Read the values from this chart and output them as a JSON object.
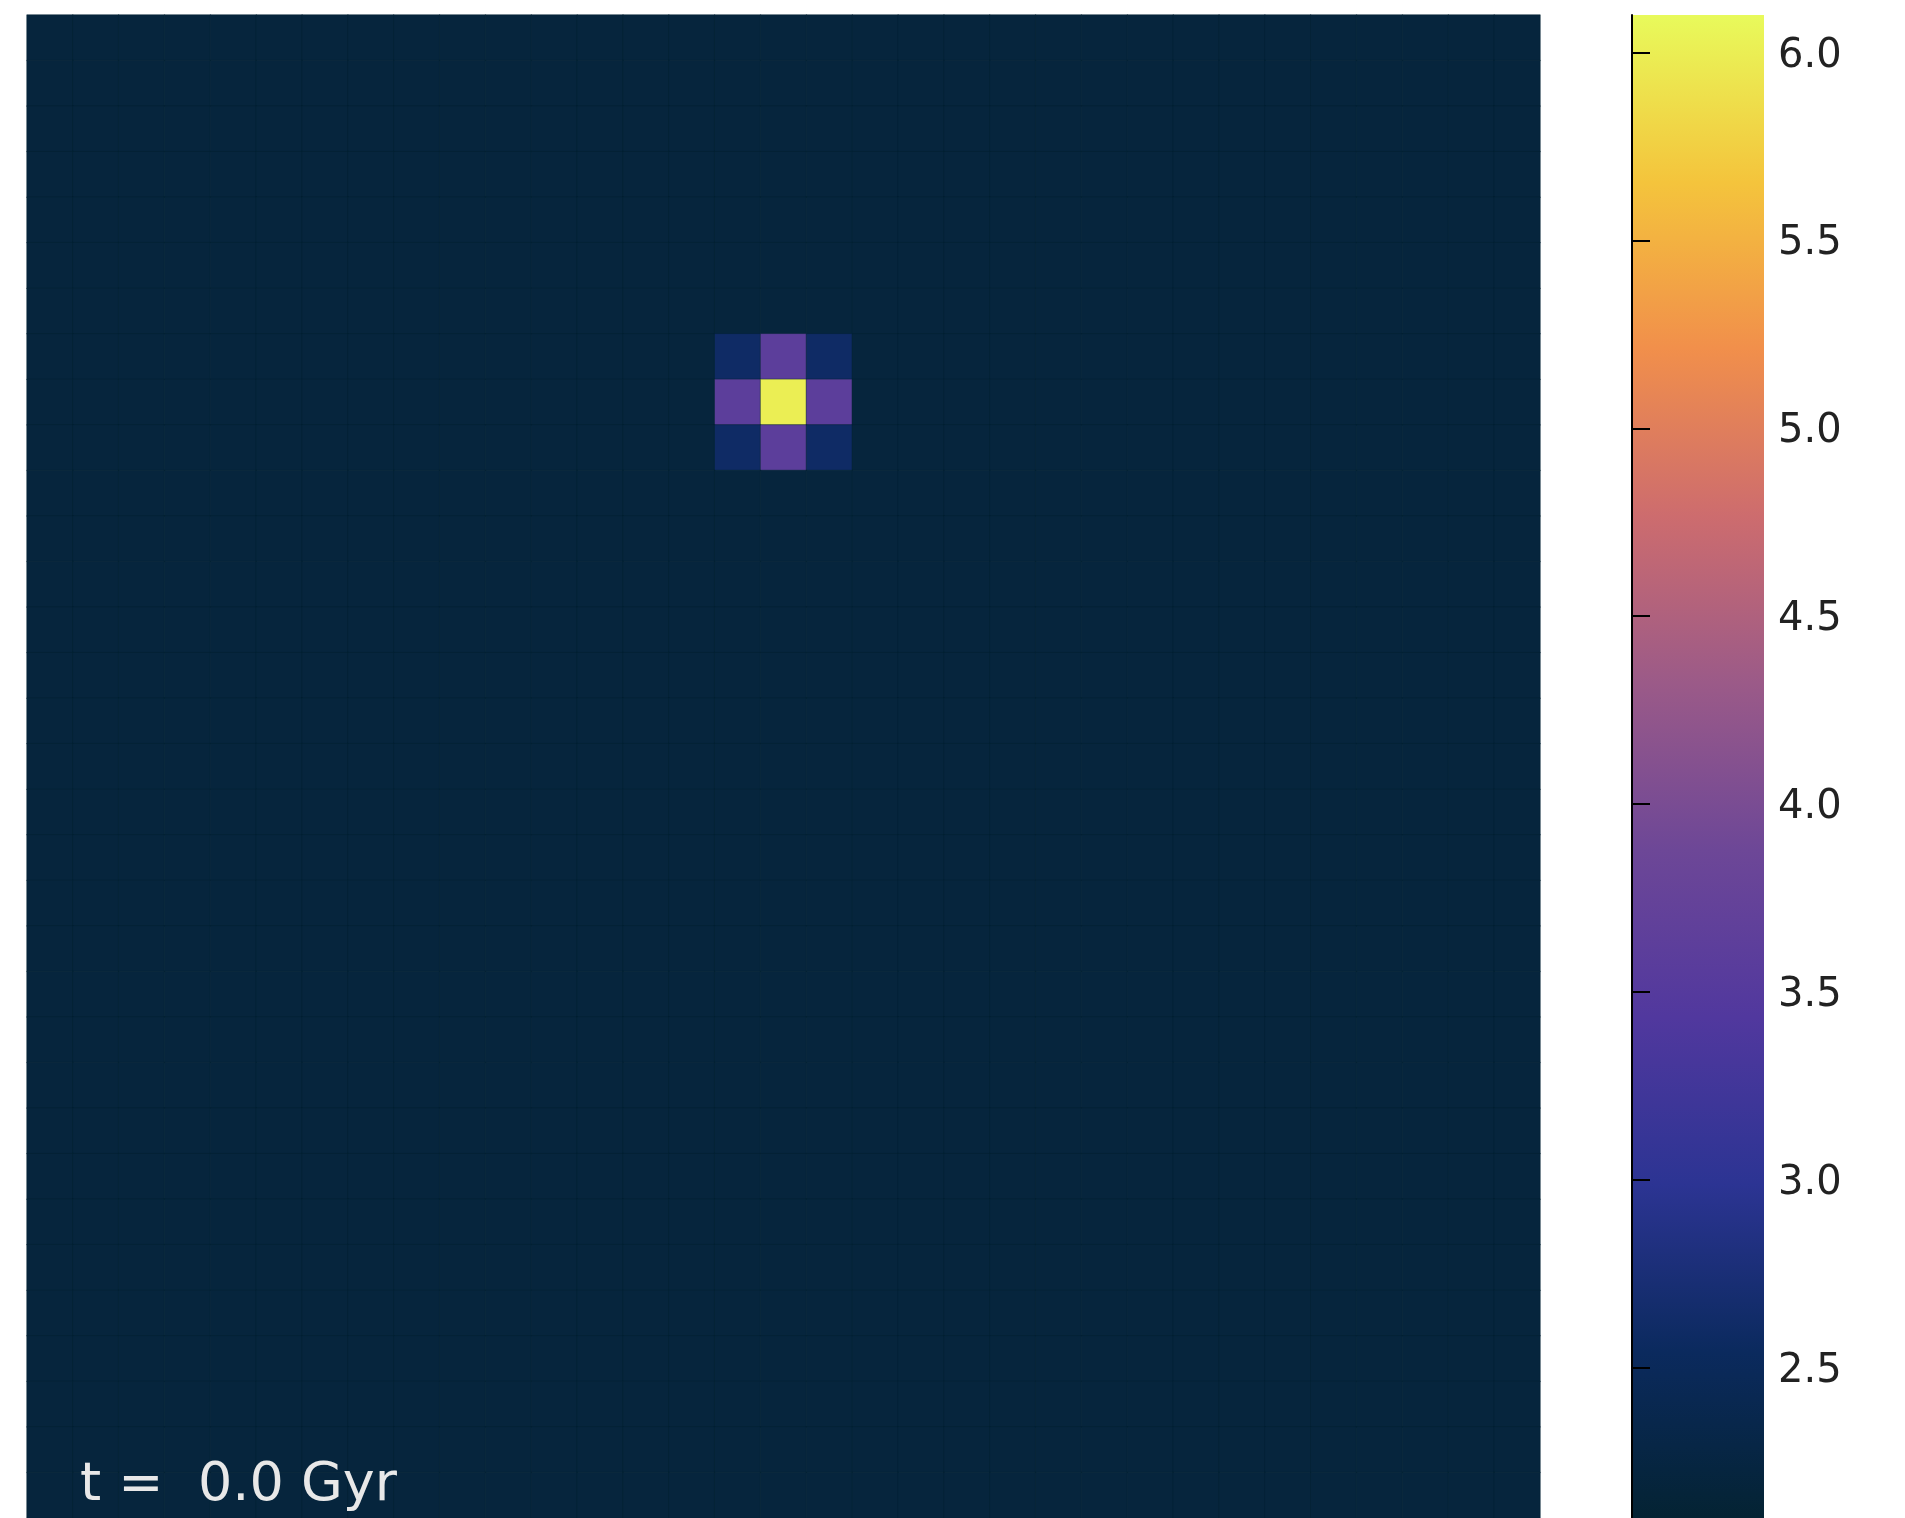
{
  "chart_data": {
    "type": "heatmap",
    "annotations": [
      "t =  0.0 Gyr"
    ],
    "categories": [
      null,
      null,
      null,
      null,
      null,
      null,
      null,
      null,
      null,
      null,
      null,
      null,
      null,
      null,
      null,
      null,
      null,
      null,
      null,
      null,
      null,
      null,
      null,
      null,
      null,
      null,
      null,
      null,
      null,
      null,
      null,
      null,
      null
    ],
    "y_categories": [
      null,
      null,
      null,
      null,
      null,
      null,
      null,
      null,
      null,
      null,
      null,
      null,
      null,
      null,
      null,
      null,
      null,
      null,
      null,
      null,
      null,
      null,
      null,
      null,
      null,
      null,
      null,
      null,
      null,
      null,
      null,
      null,
      null
    ],
    "clim": [
      2.1,
      6.1
    ],
    "cticks": [
      2.5,
      {
        "value": 3,
        "label": "3.0"
      },
      3.5,
      {
        "value": 4,
        "label": "4.0"
      },
      4.5,
      {
        "value": 5,
        "label": "5.0"
      },
      5.5,
      {
        "value": 6,
        "label": "6.0"
      }
    ],
    "tick_labels": false,
    "cells": [
      [
        2.2,
        2.2,
        2.2,
        2.2,
        2.2,
        2.2,
        2.2,
        2.2,
        2.2,
        2.2,
        2.2,
        2.2,
        2.2,
        2.2,
        2.2,
        2.2,
        2.2,
        2.2,
        2.2,
        2.2,
        2.2,
        2.2,
        2.2,
        2.2,
        2.2,
        2.2,
        2.2,
        2.2,
        2.2,
        2.2,
        2.2,
        2.2,
        2.2
      ],
      [
        2.2,
        2.2,
        2.2,
        2.2,
        2.2,
        2.2,
        2.2,
        2.2,
        2.2,
        2.2,
        2.2,
        2.2,
        2.2,
        2.2,
        2.2,
        2.2,
        2.2,
        2.2,
        2.2,
        2.2,
        2.2,
        2.2,
        2.2,
        2.2,
        2.2,
        2.2,
        2.2,
        2.2,
        2.2,
        2.2,
        2.2,
        2.2,
        2.2
      ],
      [
        2.2,
        2.2,
        2.2,
        2.2,
        2.2,
        2.2,
        2.2,
        2.2,
        2.2,
        2.2,
        2.2,
        2.2,
        2.2,
        2.2,
        2.2,
        2.2,
        2.2,
        2.2,
        2.2,
        2.2,
        2.2,
        2.2,
        2.2,
        2.2,
        2.2,
        2.2,
        2.2,
        2.2,
        2.2,
        2.2,
        2.2,
        2.2,
        2.2
      ],
      [
        2.2,
        2.2,
        2.2,
        2.2,
        2.2,
        2.2,
        2.2,
        2.2,
        2.2,
        2.2,
        2.2,
        2.2,
        2.2,
        2.2,
        2.2,
        2.2,
        2.2,
        2.2,
        2.2,
        2.2,
        2.2,
        2.2,
        2.2,
        2.2,
        2.2,
        2.2,
        2.2,
        2.2,
        2.2,
        2.2,
        2.2,
        2.2,
        2.2
      ],
      [
        2.2,
        2.2,
        2.2,
        2.2,
        2.2,
        2.2,
        2.2,
        2.2,
        2.2,
        2.2,
        2.2,
        2.2,
        2.2,
        2.2,
        2.2,
        2.2,
        2.2,
        2.2,
        2.2,
        2.2,
        2.2,
        2.2,
        2.2,
        2.2,
        2.2,
        2.2,
        2.2,
        2.2,
        2.2,
        2.2,
        2.2,
        2.2,
        2.2
      ],
      [
        2.2,
        2.2,
        2.2,
        2.2,
        2.2,
        2.2,
        2.2,
        2.2,
        2.2,
        2.2,
        2.2,
        2.2,
        2.2,
        2.2,
        2.2,
        2.2,
        2.2,
        2.2,
        2.2,
        2.2,
        2.2,
        2.2,
        2.2,
        2.2,
        2.2,
        2.2,
        2.2,
        2.2,
        2.2,
        2.2,
        2.2,
        2.2,
        2.2
      ],
      [
        2.2,
        2.2,
        2.2,
        2.2,
        2.2,
        2.2,
        2.2,
        2.2,
        2.2,
        2.2,
        2.2,
        2.2,
        2.2,
        2.2,
        2.2,
        2.2,
        2.2,
        2.2,
        2.2,
        2.2,
        2.2,
        2.2,
        2.2,
        2.2,
        2.2,
        2.2,
        2.2,
        2.2,
        2.2,
        2.2,
        2.2,
        2.2,
        2.2
      ],
      [
        2.2,
        2.2,
        2.2,
        2.2,
        2.2,
        2.2,
        2.2,
        2.2,
        2.2,
        2.2,
        2.2,
        2.2,
        2.2,
        2.2,
        2.2,
        2.6,
        3.6,
        2.6,
        2.2,
        2.2,
        2.2,
        2.2,
        2.2,
        2.2,
        2.2,
        2.2,
        2.2,
        2.2,
        2.2,
        2.2,
        2.2,
        2.2,
        2.2
      ],
      [
        2.2,
        2.2,
        2.2,
        2.2,
        2.2,
        2.2,
        2.2,
        2.2,
        2.2,
        2.2,
        2.2,
        2.2,
        2.2,
        2.2,
        2.2,
        3.6,
        6.0,
        3.6,
        2.2,
        2.2,
        2.2,
        2.2,
        2.2,
        2.2,
        2.2,
        2.2,
        2.2,
        2.2,
        2.2,
        2.2,
        2.2,
        2.2,
        2.2
      ],
      [
        2.2,
        2.2,
        2.2,
        2.2,
        2.2,
        2.2,
        2.2,
        2.2,
        2.2,
        2.2,
        2.2,
        2.2,
        2.2,
        2.2,
        2.2,
        2.6,
        3.6,
        2.6,
        2.2,
        2.2,
        2.2,
        2.2,
        2.2,
        2.2,
        2.2,
        2.2,
        2.2,
        2.2,
        2.2,
        2.2,
        2.2,
        2.2,
        2.2
      ],
      [
        2.2,
        2.2,
        2.2,
        2.2,
        2.2,
        2.2,
        2.2,
        2.2,
        2.2,
        2.2,
        2.2,
        2.2,
        2.2,
        2.2,
        2.2,
        2.2,
        2.2,
        2.2,
        2.2,
        2.2,
        2.2,
        2.2,
        2.2,
        2.2,
        2.2,
        2.2,
        2.2,
        2.2,
        2.2,
        2.2,
        2.2,
        2.2,
        2.2
      ],
      [
        2.2,
        2.2,
        2.2,
        2.2,
        2.2,
        2.2,
        2.2,
        2.2,
        2.2,
        2.2,
        2.2,
        2.2,
        2.2,
        2.2,
        2.2,
        2.2,
        2.2,
        2.2,
        2.2,
        2.2,
        2.2,
        2.2,
        2.2,
        2.2,
        2.2,
        2.2,
        2.2,
        2.2,
        2.2,
        2.2,
        2.2,
        2.2,
        2.2
      ],
      [
        2.2,
        2.2,
        2.2,
        2.2,
        2.2,
        2.2,
        2.2,
        2.2,
        2.2,
        2.2,
        2.2,
        2.2,
        2.2,
        2.2,
        2.2,
        2.2,
        2.2,
        2.2,
        2.2,
        2.2,
        2.2,
        2.2,
        2.2,
        2.2,
        2.2,
        2.2,
        2.2,
        2.2,
        2.2,
        2.2,
        2.2,
        2.2,
        2.2
      ],
      [
        2.2,
        2.2,
        2.2,
        2.2,
        2.2,
        2.2,
        2.2,
        2.2,
        2.2,
        2.2,
        2.2,
        2.2,
        2.2,
        2.2,
        2.2,
        2.2,
        2.2,
        2.2,
        2.2,
        2.2,
        2.2,
        2.2,
        2.2,
        2.2,
        2.2,
        2.2,
        2.2,
        2.2,
        2.2,
        2.2,
        2.2,
        2.2,
        2.2
      ],
      [
        2.2,
        2.2,
        2.2,
        2.2,
        2.2,
        2.2,
        2.2,
        2.2,
        2.2,
        2.2,
        2.2,
        2.2,
        2.2,
        2.2,
        2.2,
        2.2,
        2.2,
        2.2,
        2.2,
        2.2,
        2.2,
        2.2,
        2.2,
        2.2,
        2.2,
        2.2,
        2.2,
        2.2,
        2.2,
        2.2,
        2.2,
        2.2,
        2.2
      ],
      [
        2.2,
        2.2,
        2.2,
        2.2,
        2.2,
        2.2,
        2.2,
        2.2,
        2.2,
        2.2,
        2.2,
        2.2,
        2.2,
        2.2,
        2.2,
        2.2,
        2.2,
        2.2,
        2.2,
        2.2,
        2.2,
        2.2,
        2.2,
        2.2,
        2.2,
        2.2,
        2.2,
        2.2,
        2.2,
        2.2,
        2.2,
        2.2,
        2.2
      ],
      [
        2.2,
        2.2,
        2.2,
        2.2,
        2.2,
        2.2,
        2.2,
        2.2,
        2.2,
        2.2,
        2.2,
        2.2,
        2.2,
        2.2,
        2.2,
        2.2,
        2.2,
        2.2,
        2.2,
        2.2,
        2.2,
        2.2,
        2.2,
        2.2,
        2.2,
        2.2,
        2.2,
        2.2,
        2.2,
        2.2,
        2.2,
        2.2,
        2.2
      ],
      [
        2.2,
        2.2,
        2.2,
        2.2,
        2.2,
        2.2,
        2.2,
        2.2,
        2.2,
        2.2,
        2.2,
        2.2,
        2.2,
        2.2,
        2.2,
        2.2,
        2.2,
        2.2,
        2.2,
        2.2,
        2.2,
        2.2,
        2.2,
        2.2,
        2.2,
        2.2,
        2.2,
        2.2,
        2.2,
        2.2,
        2.2,
        2.2,
        2.2
      ],
      [
        2.2,
        2.2,
        2.2,
        2.2,
        2.2,
        2.2,
        2.2,
        2.2,
        2.2,
        2.2,
        2.2,
        2.2,
        2.2,
        2.2,
        2.2,
        2.2,
        2.2,
        2.2,
        2.2,
        2.2,
        2.2,
        2.2,
        2.2,
        2.2,
        2.2,
        2.2,
        2.2,
        2.2,
        2.2,
        2.2,
        2.2,
        2.2,
        2.2
      ],
      [
        2.2,
        2.2,
        2.2,
        2.2,
        2.2,
        2.2,
        2.2,
        2.2,
        2.2,
        2.2,
        2.2,
        2.2,
        2.2,
        2.2,
        2.2,
        2.2,
        2.2,
        2.2,
        2.2,
        2.2,
        2.2,
        2.2,
        2.2,
        2.2,
        2.2,
        2.2,
        2.2,
        2.2,
        2.2,
        2.2,
        2.2,
        2.2,
        2.2
      ],
      [
        2.2,
        2.2,
        2.2,
        2.2,
        2.2,
        2.2,
        2.2,
        2.2,
        2.2,
        2.2,
        2.2,
        2.2,
        2.2,
        2.2,
        2.2,
        2.2,
        2.2,
        2.2,
        2.2,
        2.2,
        2.2,
        2.2,
        2.2,
        2.2,
        2.2,
        2.2,
        2.2,
        2.2,
        2.2,
        2.2,
        2.2,
        2.2,
        2.2
      ],
      [
        2.2,
        2.2,
        2.2,
        2.2,
        2.2,
        2.2,
        2.2,
        2.2,
        2.2,
        2.2,
        2.2,
        2.2,
        2.2,
        2.2,
        2.2,
        2.2,
        2.2,
        2.2,
        2.2,
        2.2,
        2.2,
        2.2,
        2.2,
        2.2,
        2.2,
        2.2,
        2.2,
        2.2,
        2.2,
        2.2,
        2.2,
        2.2,
        2.2
      ],
      [
        2.2,
        2.2,
        2.2,
        2.2,
        2.2,
        2.2,
        2.2,
        2.2,
        2.2,
        2.2,
        2.2,
        2.2,
        2.2,
        2.2,
        2.2,
        2.2,
        2.2,
        2.2,
        2.2,
        2.2,
        2.2,
        2.2,
        2.2,
        2.2,
        2.2,
        2.2,
        2.2,
        2.2,
        2.2,
        2.2,
        2.2,
        2.2,
        2.2
      ],
      [
        2.2,
        2.2,
        2.2,
        2.2,
        2.2,
        2.2,
        2.2,
        2.2,
        2.2,
        2.2,
        2.2,
        2.2,
        2.2,
        2.2,
        2.2,
        2.2,
        2.2,
        2.2,
        2.2,
        2.2,
        2.2,
        2.2,
        2.2,
        2.2,
        2.2,
        2.2,
        2.2,
        2.2,
        2.2,
        2.2,
        2.2,
        2.2,
        2.2
      ],
      [
        2.2,
        2.2,
        2.2,
        2.2,
        2.2,
        2.2,
        2.2,
        2.2,
        2.2,
        2.2,
        2.2,
        2.2,
        2.2,
        2.2,
        2.2,
        2.2,
        2.2,
        2.2,
        2.2,
        2.2,
        2.2,
        2.2,
        2.2,
        2.2,
        2.2,
        2.2,
        2.2,
        2.2,
        2.2,
        2.2,
        2.2,
        2.2,
        2.2
      ],
      [
        2.2,
        2.2,
        2.2,
        2.2,
        2.2,
        2.2,
        2.2,
        2.2,
        2.2,
        2.2,
        2.2,
        2.2,
        2.2,
        2.2,
        2.2,
        2.2,
        2.2,
        2.2,
        2.2,
        2.2,
        2.2,
        2.2,
        2.2,
        2.2,
        2.2,
        2.2,
        2.2,
        2.2,
        2.2,
        2.2,
        2.2,
        2.2,
        2.2
      ],
      [
        2.2,
        2.2,
        2.2,
        2.2,
        2.2,
        2.2,
        2.2,
        2.2,
        2.2,
        2.2,
        2.2,
        2.2,
        2.2,
        2.2,
        2.2,
        2.2,
        2.2,
        2.2,
        2.2,
        2.2,
        2.2,
        2.2,
        2.2,
        2.2,
        2.2,
        2.2,
        2.2,
        2.2,
        2.2,
        2.2,
        2.2,
        2.2,
        2.2
      ],
      [
        2.2,
        2.2,
        2.2,
        2.2,
        2.2,
        2.2,
        2.2,
        2.2,
        2.2,
        2.2,
        2.2,
        2.2,
        2.2,
        2.2,
        2.2,
        2.2,
        2.2,
        2.2,
        2.2,
        2.2,
        2.2,
        2.2,
        2.2,
        2.2,
        2.2,
        2.2,
        2.2,
        2.2,
        2.2,
        2.2,
        2.2,
        2.2,
        2.2
      ],
      [
        2.2,
        2.2,
        2.2,
        2.2,
        2.2,
        2.2,
        2.2,
        2.2,
        2.2,
        2.2,
        2.2,
        2.2,
        2.2,
        2.2,
        2.2,
        2.2,
        2.2,
        2.2,
        2.2,
        2.2,
        2.2,
        2.2,
        2.2,
        2.2,
        2.2,
        2.2,
        2.2,
        2.2,
        2.2,
        2.2,
        2.2,
        2.2,
        2.2
      ],
      [
        2.2,
        2.2,
        2.2,
        2.2,
        2.2,
        2.2,
        2.2,
        2.2,
        2.2,
        2.2,
        2.2,
        2.2,
        2.2,
        2.2,
        2.2,
        2.2,
        2.2,
        2.2,
        2.2,
        2.2,
        2.2,
        2.2,
        2.2,
        2.2,
        2.2,
        2.2,
        2.2,
        2.2,
        2.2,
        2.2,
        2.2,
        2.2,
        2.2
      ],
      [
        2.2,
        2.2,
        2.2,
        2.2,
        2.2,
        2.2,
        2.2,
        2.2,
        2.2,
        2.2,
        2.2,
        2.2,
        2.2,
        2.2,
        2.2,
        2.2,
        2.2,
        2.2,
        2.2,
        2.2,
        2.2,
        2.2,
        2.2,
        2.2,
        2.2,
        2.2,
        2.2,
        2.2,
        2.2,
        2.2,
        2.2,
        2.2,
        2.2
      ],
      [
        2.2,
        2.2,
        2.2,
        2.2,
        2.2,
        2.2,
        2.2,
        2.2,
        2.2,
        2.2,
        2.2,
        2.2,
        2.2,
        2.2,
        2.2,
        2.2,
        2.2,
        2.2,
        2.2,
        2.2,
        2.2,
        2.2,
        2.2,
        2.2,
        2.2,
        2.2,
        2.2,
        2.2,
        2.2,
        2.2,
        2.2,
        2.2,
        2.2
      ],
      [
        2.2,
        2.2,
        2.2,
        2.2,
        2.2,
        2.2,
        2.2,
        2.2,
        2.2,
        2.2,
        2.2,
        2.2,
        2.2,
        2.2,
        2.2,
        2.2,
        2.2,
        2.2,
        2.2,
        2.2,
        2.2,
        2.2,
        2.2,
        2.2,
        2.2,
        2.2,
        2.2,
        2.2,
        2.2,
        2.2,
        2.2,
        2.2,
        2.2
      ]
    ]
  }
}
